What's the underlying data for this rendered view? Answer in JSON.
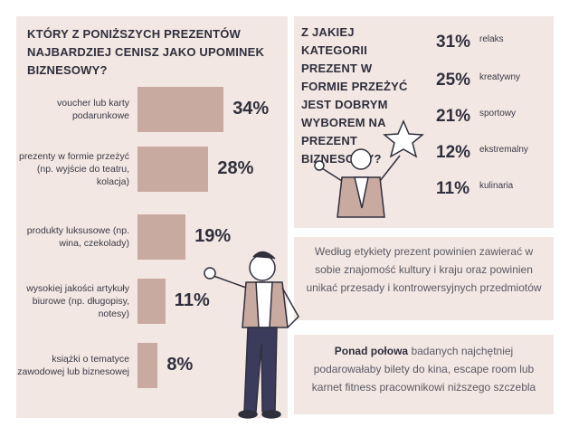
{
  "chart_data": [
    {
      "type": "bar",
      "orientation": "horizontal",
      "title": "KTÓRY Z PONIŻSZYCH PREZENTÓW NAJBARDZIEJ CENISZ JAKO UPOMINEK BIZNESOWY?",
      "categories": [
        "voucher lub karty podarunkowe",
        "prezenty w formie przeżyć (np. wyjście do teatru, kolacja)",
        "produkty luksusowe (np. wina, czekolady)",
        "wysokiej jakości artykuły biurowe (np. długopisy, notesy)",
        "książki o tematyce zawodowej lub biznesowej"
      ],
      "values": [
        34,
        28,
        19,
        11,
        8
      ],
      "value_labels": [
        "34%",
        "28%",
        "19%",
        "11%",
        "8%"
      ],
      "color": "#c9aaa1"
    },
    {
      "type": "ranking",
      "title": "Z JAKIEJ KATEGORII PREZENT W FORMIE PRZEŻYĆ JEST DOBRYM WYBOREM NA PREZENT BIZNESOWY?",
      "categories": [
        "relaks",
        "kreatywny",
        "sportowy",
        "ekstremalny",
        "kulinaria"
      ],
      "values": [
        31,
        25,
        21,
        12,
        11
      ],
      "value_labels": [
        "31%",
        "25%",
        "21%",
        "12%",
        "11%"
      ]
    }
  ],
  "notes": [
    {
      "text": "Według etykiety prezent powinien zawierać w sobie znajomość kultury i kraju oraz powinien unikać przesady i kontrowersyjnych przedmiotów"
    },
    {
      "bold": "Ponad połowa",
      "text": "badanych najchętniej podarowałaby bilety do kina, escape room lub karnet fitness pracownikowi niższego szczebla"
    }
  ]
}
